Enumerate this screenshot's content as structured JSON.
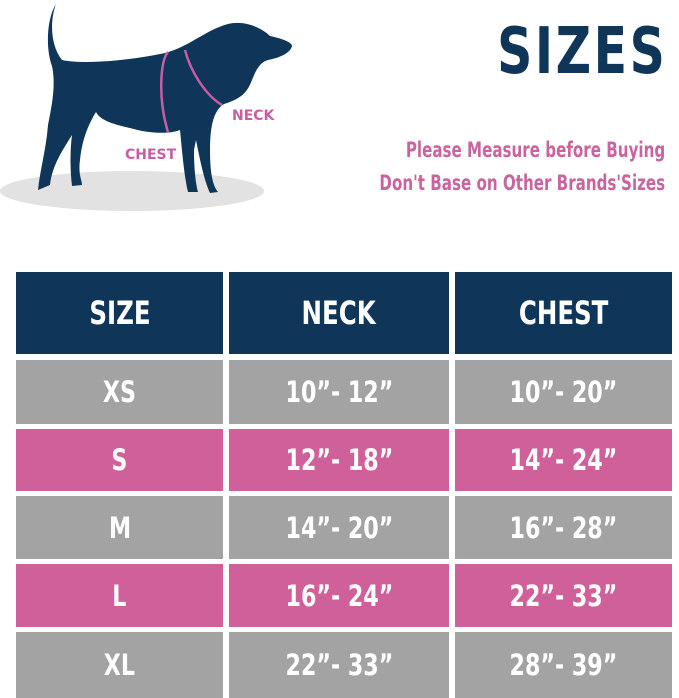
{
  "illustration": {
    "neck_label": "NECK",
    "chest_label": "CHEST"
  },
  "title": "SIZES",
  "notes": [
    "Please Measure before Buying",
    "Don't Base on Other Brands'Sizes"
  ],
  "colors": {
    "navy": "#0f3659",
    "gray": "#a3a3a3",
    "pink": "#d0609a",
    "text_pink": "#c9649f"
  },
  "table": {
    "headers": [
      "SIZE",
      "NECK",
      "CHEST"
    ],
    "rows": [
      [
        "XS",
        "10”- 12”",
        "10”- 20”"
      ],
      [
        "S",
        "12”- 18”",
        "14”- 24”"
      ],
      [
        "M",
        "14”- 20”",
        "16”- 28”"
      ],
      [
        "L",
        "16”- 24”",
        "22”- 33”"
      ],
      [
        "XL",
        "22”- 33”",
        "28”- 39”"
      ]
    ]
  }
}
